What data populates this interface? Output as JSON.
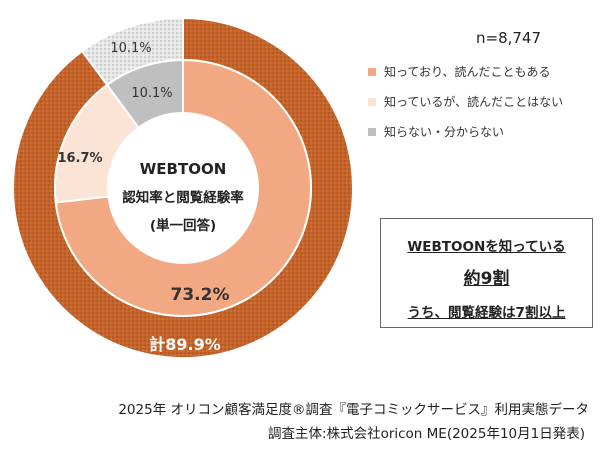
{
  "chart_data": {
    "type": "pie",
    "sample_size": "n=8,747",
    "center_title": "WEBTOON",
    "center_subtitle": "認知率と閲覧経験率",
    "center_note": "(単一回答)",
    "outer_ring": {
      "segments": [
        {
          "label": "計89.9%",
          "value": 89.9,
          "color": "#c4632a"
        },
        {
          "label": "10.1%",
          "value": 10.1,
          "color": "#d9d9d9"
        }
      ]
    },
    "inner_ring": {
      "segments": [
        {
          "label": "73.2%",
          "value": 73.2,
          "color": "#f2a983"
        },
        {
          "label": "16.7%",
          "value": 16.7,
          "color": "#fbe4d6"
        },
        {
          "label": "10.1%",
          "value": 10.1,
          "color": "#bfbfbf"
        }
      ]
    },
    "legend": [
      {
        "label": "知っており、読んだこともある",
        "color": "#f2a983"
      },
      {
        "label": "知っているが、読んだことはない",
        "color": "#fbe4d6"
      },
      {
        "label": "知らない・分からない",
        "color": "#bfbfbf"
      }
    ]
  },
  "callout": {
    "line1": "WEBTOONを知っている",
    "line2": "約9割",
    "line3": "うち、閲覧経験は7割以上"
  },
  "footer": {
    "source": "2025年 オリコン顧客満足度®調査『電子コミックサービス』利用実態データ",
    "organizer": "調査主体:株式会社oricon ME(2025年10月1日発表)"
  }
}
